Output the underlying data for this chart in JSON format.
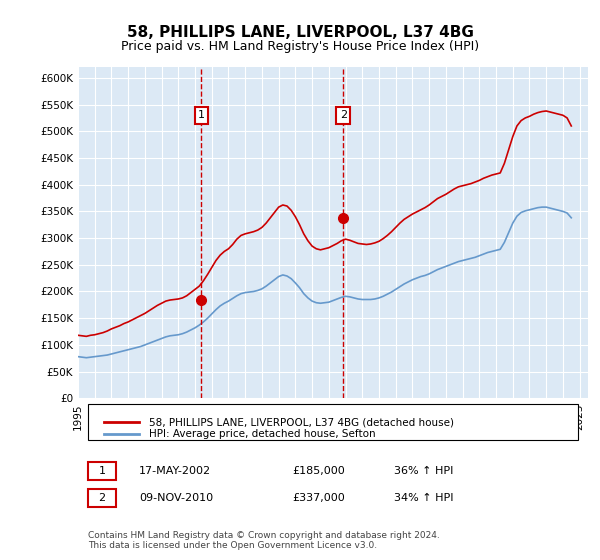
{
  "title": "58, PHILLIPS LANE, LIVERPOOL, L37 4BG",
  "subtitle": "Price paid vs. HM Land Registry's House Price Index (HPI)",
  "ylabel_ticks": [
    "£0",
    "£50K",
    "£100K",
    "£150K",
    "£200K",
    "£250K",
    "£300K",
    "£350K",
    "£400K",
    "£450K",
    "£500K",
    "£550K",
    "£600K"
  ],
  "ytick_values": [
    0,
    50000,
    100000,
    150000,
    200000,
    250000,
    300000,
    350000,
    400000,
    450000,
    500000,
    550000,
    600000
  ],
  "ylim": [
    0,
    620000
  ],
  "xlim_start": 1995.0,
  "xlim_end": 2025.5,
  "background_color": "#dce9f5",
  "plot_bg_color": "#dce9f5",
  "outer_bg_color": "#ffffff",
  "red_line_color": "#cc0000",
  "blue_line_color": "#6699cc",
  "annotation_box_color": "#ffffff",
  "annotation_border_color": "#cc0000",
  "dashed_line_color": "#cc0000",
  "legend_label_red": "58, PHILLIPS LANE, LIVERPOOL, L37 4BG (detached house)",
  "legend_label_blue": "HPI: Average price, detached house, Sefton",
  "sale1_label": "1",
  "sale1_date": "17-MAY-2002",
  "sale1_price": "£185,000",
  "sale1_hpi": "36% ↑ HPI",
  "sale1_x": 2002.38,
  "sale1_y": 185000,
  "sale2_label": "2",
  "sale2_date": "09-NOV-2010",
  "sale2_price": "£337,000",
  "sale2_hpi": "34% ↑ HPI",
  "sale2_x": 2010.86,
  "sale2_y": 337000,
  "footnote": "Contains HM Land Registry data © Crown copyright and database right 2024.\nThis data is licensed under the Open Government Licence v3.0.",
  "hpi_red_x": [
    1995.0,
    1995.25,
    1995.5,
    1995.75,
    1996.0,
    1996.25,
    1996.5,
    1996.75,
    1997.0,
    1997.25,
    1997.5,
    1997.75,
    1998.0,
    1998.25,
    1998.5,
    1998.75,
    1999.0,
    1999.25,
    1999.5,
    1999.75,
    2000.0,
    2000.25,
    2000.5,
    2000.75,
    2001.0,
    2001.25,
    2001.5,
    2001.75,
    2002.0,
    2002.25,
    2002.5,
    2002.75,
    2003.0,
    2003.25,
    2003.5,
    2003.75,
    2004.0,
    2004.25,
    2004.5,
    2004.75,
    2005.0,
    2005.25,
    2005.5,
    2005.75,
    2006.0,
    2006.25,
    2006.5,
    2006.75,
    2007.0,
    2007.25,
    2007.5,
    2007.75,
    2008.0,
    2008.25,
    2008.5,
    2008.75,
    2009.0,
    2009.25,
    2009.5,
    2009.75,
    2010.0,
    2010.25,
    2010.5,
    2010.75,
    2011.0,
    2011.25,
    2011.5,
    2011.75,
    2012.0,
    2012.25,
    2012.5,
    2012.75,
    2013.0,
    2013.25,
    2013.5,
    2013.75,
    2014.0,
    2014.25,
    2014.5,
    2014.75,
    2015.0,
    2015.25,
    2015.5,
    2015.75,
    2016.0,
    2016.25,
    2016.5,
    2016.75,
    2017.0,
    2017.25,
    2017.5,
    2017.75,
    2018.0,
    2018.25,
    2018.5,
    2018.75,
    2019.0,
    2019.25,
    2019.5,
    2019.75,
    2020.0,
    2020.25,
    2020.5,
    2020.75,
    2021.0,
    2021.25,
    2021.5,
    2021.75,
    2022.0,
    2022.25,
    2022.5,
    2022.75,
    2023.0,
    2023.25,
    2023.5,
    2023.75,
    2024.0,
    2024.25,
    2024.5
  ],
  "hpi_red_y": [
    118000,
    117000,
    116000,
    118000,
    119000,
    121000,
    123000,
    126000,
    130000,
    133000,
    136000,
    140000,
    143000,
    147000,
    151000,
    155000,
    159000,
    164000,
    169000,
    174000,
    178000,
    182000,
    184000,
    185000,
    186000,
    188000,
    192000,
    198000,
    204000,
    210000,
    220000,
    232000,
    245000,
    258000,
    268000,
    275000,
    280000,
    288000,
    298000,
    305000,
    308000,
    310000,
    312000,
    315000,
    320000,
    328000,
    338000,
    348000,
    358000,
    362000,
    360000,
    352000,
    340000,
    325000,
    308000,
    295000,
    285000,
    280000,
    278000,
    280000,
    282000,
    286000,
    290000,
    295000,
    298000,
    296000,
    293000,
    290000,
    289000,
    288000,
    289000,
    291000,
    294000,
    299000,
    305000,
    312000,
    320000,
    328000,
    335000,
    340000,
    345000,
    349000,
    353000,
    357000,
    362000,
    368000,
    374000,
    378000,
    382000,
    387000,
    392000,
    396000,
    398000,
    400000,
    402000,
    405000,
    408000,
    412000,
    415000,
    418000,
    420000,
    422000,
    440000,
    465000,
    490000,
    510000,
    520000,
    525000,
    528000,
    532000,
    535000,
    537000,
    538000,
    536000,
    534000,
    532000,
    530000,
    525000,
    510000
  ],
  "hpi_blue_x": [
    1995.0,
    1995.25,
    1995.5,
    1995.75,
    1996.0,
    1996.25,
    1996.5,
    1996.75,
    1997.0,
    1997.25,
    1997.5,
    1997.75,
    1998.0,
    1998.25,
    1998.5,
    1998.75,
    1999.0,
    1999.25,
    1999.5,
    1999.75,
    2000.0,
    2000.25,
    2000.5,
    2000.75,
    2001.0,
    2001.25,
    2001.5,
    2001.75,
    2002.0,
    2002.25,
    2002.5,
    2002.75,
    2003.0,
    2003.25,
    2003.5,
    2003.75,
    2004.0,
    2004.25,
    2004.5,
    2004.75,
    2005.0,
    2005.25,
    2005.5,
    2005.75,
    2006.0,
    2006.25,
    2006.5,
    2006.75,
    2007.0,
    2007.25,
    2007.5,
    2007.75,
    2008.0,
    2008.25,
    2008.5,
    2008.75,
    2009.0,
    2009.25,
    2009.5,
    2009.75,
    2010.0,
    2010.25,
    2010.5,
    2010.75,
    2011.0,
    2011.25,
    2011.5,
    2011.75,
    2012.0,
    2012.25,
    2012.5,
    2012.75,
    2013.0,
    2013.25,
    2013.5,
    2013.75,
    2014.0,
    2014.25,
    2014.5,
    2014.75,
    2015.0,
    2015.25,
    2015.5,
    2015.75,
    2016.0,
    2016.25,
    2016.5,
    2016.75,
    2017.0,
    2017.25,
    2017.5,
    2017.75,
    2018.0,
    2018.25,
    2018.5,
    2018.75,
    2019.0,
    2019.25,
    2019.5,
    2019.75,
    2020.0,
    2020.25,
    2020.5,
    2020.75,
    2021.0,
    2021.25,
    2021.5,
    2021.75,
    2022.0,
    2022.25,
    2022.5,
    2022.75,
    2023.0,
    2023.25,
    2023.5,
    2023.75,
    2024.0,
    2024.25,
    2024.5
  ],
  "hpi_blue_y": [
    78000,
    77000,
    76000,
    77000,
    78000,
    79000,
    80000,
    81000,
    83000,
    85000,
    87000,
    89000,
    91000,
    93000,
    95000,
    97000,
    100000,
    103000,
    106000,
    109000,
    112000,
    115000,
    117000,
    118000,
    119000,
    121000,
    124000,
    128000,
    132000,
    137000,
    143000,
    150000,
    158000,
    166000,
    173000,
    178000,
    182000,
    187000,
    192000,
    196000,
    198000,
    199000,
    200000,
    202000,
    205000,
    210000,
    216000,
    222000,
    228000,
    231000,
    229000,
    224000,
    216000,
    207000,
    196000,
    188000,
    182000,
    179000,
    178000,
    179000,
    180000,
    183000,
    186000,
    189000,
    191000,
    190000,
    188000,
    186000,
    185000,
    185000,
    185000,
    186000,
    188000,
    191000,
    195000,
    199000,
    204000,
    209000,
    214000,
    218000,
    222000,
    225000,
    228000,
    230000,
    233000,
    237000,
    241000,
    244000,
    247000,
    250000,
    253000,
    256000,
    258000,
    260000,
    262000,
    264000,
    267000,
    270000,
    273000,
    275000,
    277000,
    279000,
    292000,
    310000,
    328000,
    341000,
    348000,
    351000,
    353000,
    355000,
    357000,
    358000,
    358000,
    356000,
    354000,
    352000,
    350000,
    347000,
    338000
  ]
}
